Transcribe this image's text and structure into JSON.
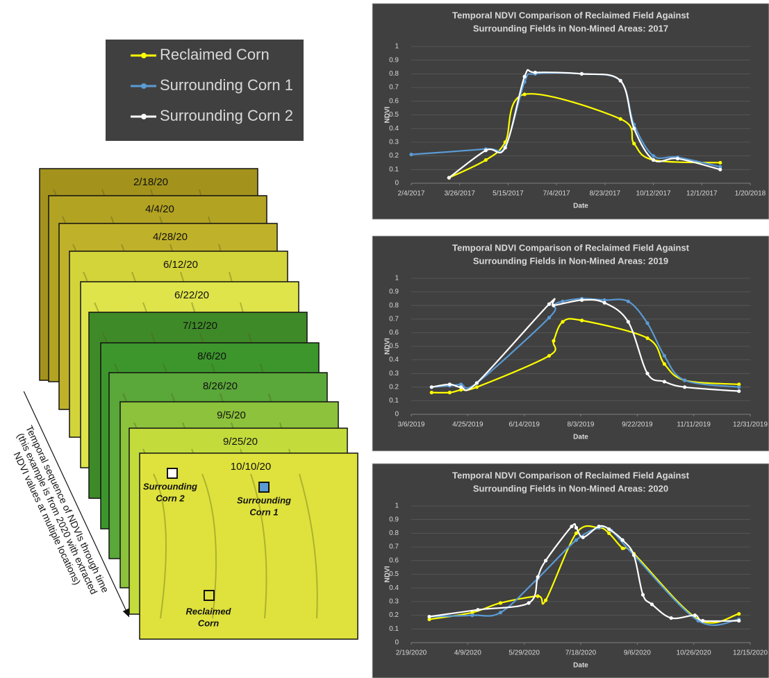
{
  "legend": {
    "entries": [
      {
        "name": "Reclaimed Corn",
        "color": "#ffff00"
      },
      {
        "name": "Surrounding Corn 1",
        "color": "#5b9bd5"
      },
      {
        "name": "Surrounding Corn 2",
        "color": "#ffffff"
      }
    ]
  },
  "image_stack": {
    "dates": [
      "2/18/20",
      "4/4/20",
      "4/28/20",
      "6/12/20",
      "6/22/20",
      "7/12/20",
      "8/6/20",
      "8/26/20",
      "9/5/20",
      "9/25/20",
      "10/10/20"
    ],
    "locations": [
      [
        "Surrounding",
        "Corn 2"
      ],
      [
        "Surrounding",
        "Corn 1"
      ],
      [
        "Reclaimed",
        "Corn"
      ]
    ],
    "caption": [
      "Temporal sequence of NDVIs through time",
      "(this example is from 2020 with extracted",
      "NDVI values at multiple locations)"
    ]
  },
  "chart_data": [
    {
      "type": "line",
      "title": [
        "Temporal NDVI Comparison of Reclaimed Field Against",
        "Surrounding Fields in Non-Mined Areas: 2017"
      ],
      "x_label": "Date",
      "y_label": "NDVI",
      "xlim": [
        "2/4/2017",
        "1/20/2018"
      ],
      "xticks": [
        "2/4/2017",
        "3/26/2017",
        "5/15/2017",
        "7/4/2017",
        "8/23/2017",
        "10/12/2017",
        "12/1/2017",
        "1/20/2018"
      ],
      "ylim": [
        0,
        1
      ],
      "yticks": [
        0,
        0.1,
        0.2,
        0.3,
        0.4,
        0.5,
        0.6,
        0.7,
        0.8,
        0.9,
        1
      ],
      "grid": true,
      "series": [
        {
          "color": "#ffff00",
          "x": [
            "3/15/2017",
            "4/22/2017",
            "5/12/2017",
            "6/1/2017",
            "9/8/2017",
            "9/22/2017",
            "10/12/2017",
            "12/20/2017"
          ],
          "values": [
            0.04,
            0.17,
            0.3,
            0.65,
            0.47,
            0.29,
            0.17,
            0.15
          ]
        },
        {
          "color": "#5b9bd5",
          "x": [
            "2/4/2017",
            "4/22/2017",
            "5/12/2017",
            "6/1/2017",
            "6/12/2017",
            "7/30/2017",
            "9/8/2017",
            "9/22/2017",
            "10/12/2017",
            "11/6/2017",
            "12/20/2017"
          ],
          "values": [
            0.21,
            0.25,
            0.27,
            0.74,
            0.8,
            0.8,
            0.75,
            0.43,
            0.2,
            0.19,
            0.12
          ]
        },
        {
          "color": "#ffffff",
          "x": [
            "3/15/2017",
            "4/22/2017",
            "5/12/2017",
            "6/1/2017",
            "6/12/2017",
            "7/30/2017",
            "9/8/2017",
            "9/22/2017",
            "10/12/2017",
            "11/6/2017",
            "12/20/2017"
          ],
          "values": [
            0.04,
            0.24,
            0.26,
            0.78,
            0.81,
            0.8,
            0.75,
            0.4,
            0.17,
            0.18,
            0.1
          ]
        }
      ]
    },
    {
      "type": "line",
      "title": [
        "Temporal NDVI Comparison of Reclaimed Field Against",
        "Surrounding Fields in Non-Mined Areas: 2019"
      ],
      "x_label": "Date",
      "y_label": "NDVI",
      "xlim": [
        "3/6/2019",
        "12/31/2019"
      ],
      "xticks": [
        "3/6/2019",
        "4/25/2019",
        "6/14/2019",
        "8/3/2019",
        "9/22/2019",
        "11/11/2019",
        "12/31/2019"
      ],
      "ylim": [
        0,
        1
      ],
      "yticks": [
        0,
        0.1,
        0.2,
        0.3,
        0.4,
        0.5,
        0.6,
        0.7,
        0.8,
        0.9,
        1
      ],
      "grid": true,
      "series": [
        {
          "color": "#ffff00",
          "x": [
            "3/24/2019",
            "4/9/2019",
            "4/19/2019",
            "5/3/2019",
            "7/6/2019",
            "7/10/2019",
            "7/18/2019",
            "8/4/2019",
            "10/1/2019",
            "10/16/2019",
            "11/3/2019",
            "12/21/2019"
          ],
          "values": [
            0.16,
            0.16,
            0.18,
            0.2,
            0.43,
            0.54,
            0.68,
            0.69,
            0.56,
            0.37,
            0.25,
            0.22
          ]
        },
        {
          "color": "#5b9bd5",
          "x": [
            "3/24/2019",
            "4/9/2019",
            "4/19/2019",
            "5/3/2019",
            "7/6/2019",
            "7/10/2019",
            "7/18/2019",
            "8/4/2019",
            "8/24/2019",
            "9/14/2019",
            "10/1/2019",
            "10/16/2019",
            "11/3/2019",
            "12/21/2019"
          ],
          "values": [
            0.2,
            0.21,
            0.22,
            0.23,
            0.71,
            0.8,
            0.83,
            0.85,
            0.84,
            0.83,
            0.67,
            0.43,
            0.25,
            0.2
          ]
        },
        {
          "color": "#ffffff",
          "x": [
            "3/24/2019",
            "4/9/2019",
            "4/19/2019",
            "5/3/2019",
            "7/6/2019",
            "7/10/2019",
            "8/4/2019",
            "8/24/2019",
            "9/14/2019",
            "10/1/2019",
            "10/16/2019",
            "11/3/2019",
            "12/21/2019"
          ],
          "values": [
            0.2,
            0.22,
            0.2,
            0.23,
            0.81,
            0.8,
            0.84,
            0.82,
            0.68,
            0.3,
            0.24,
            0.2,
            0.17
          ]
        }
      ]
    },
    {
      "type": "line",
      "title": [
        "Temporal NDVI Comparison of Reclaimed Field Against",
        "Surrounding Fields in Non-Mined Areas: 2020"
      ],
      "x_label": "Date",
      "y_label": "NDVI",
      "xlim": [
        "2/19/2020",
        "12/15/2020"
      ],
      "xticks": [
        "2/19/2020",
        "4/9/2020",
        "5/29/2020",
        "7/18/2020",
        "9/6/2020",
        "10/26/2020",
        "12/15/2020"
      ],
      "ylim": [
        0,
        1
      ],
      "yticks": [
        0,
        0.1,
        0.2,
        0.3,
        0.4,
        0.5,
        0.6,
        0.7,
        0.8,
        0.9,
        1
      ],
      "grid": true,
      "series": [
        {
          "color": "#ffff00",
          "x": [
            "3/6/2020",
            "4/13/2020",
            "5/8/2020",
            "6/10/2020",
            "6/17/2020",
            "7/14/2020",
            "8/3/2020",
            "8/12/2020",
            "8/24/2020",
            "9/3/2020",
            "10/30/2020",
            "12/5/2020"
          ],
          "values": [
            0.17,
            0.22,
            0.29,
            0.34,
            0.31,
            0.8,
            0.84,
            0.8,
            0.69,
            0.65,
            0.17,
            0.21
          ]
        },
        {
          "color": "#5b9bd5",
          "x": [
            "3/6/2020",
            "4/13/2020",
            "5/8/2020",
            "6/10/2020",
            "7/14/2020",
            "8/3/2020",
            "8/14/2020",
            "9/3/2020",
            "10/30/2020",
            "12/5/2020"
          ],
          "values": [
            0.19,
            0.2,
            0.22,
            0.47,
            0.75,
            0.84,
            0.82,
            0.64,
            0.16,
            0.17
          ]
        },
        {
          "color": "#ffffff",
          "x": [
            "3/6/2020",
            "4/18/2020",
            "6/2/2020",
            "6/10/2020",
            "6/17/2020",
            "7/10/2020",
            "7/14/2020",
            "7/20/2020",
            "8/3/2020",
            "8/12/2020",
            "8/24/2020",
            "9/3/2020",
            "9/11/2020",
            "9/19/2020",
            "10/6/2020",
            "10/27/2020",
            "11/3/2020",
            "12/5/2020"
          ],
          "values": [
            0.19,
            0.24,
            0.29,
            0.48,
            0.6,
            0.85,
            0.84,
            0.77,
            0.85,
            0.83,
            0.75,
            0.64,
            0.35,
            0.28,
            0.18,
            0.2,
            0.16,
            0.16
          ]
        }
      ]
    }
  ]
}
